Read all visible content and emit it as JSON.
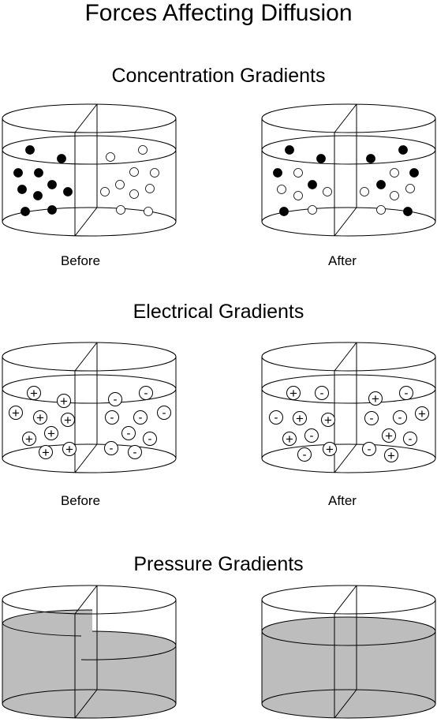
{
  "title": "Forces Affecting Diffusion",
  "sections": {
    "concentration": {
      "heading": "Concentration Gradients",
      "before_label": "Before",
      "after_label": "After"
    },
    "electrical": {
      "heading": "Electrical Gradients",
      "before_label": "Before",
      "after_label": "After",
      "positive_symbol": "+",
      "negative_symbol": "-"
    },
    "pressure": {
      "heading": "Pressure Gradients"
    }
  },
  "colors": {
    "line": "#000000",
    "liquid_fill": "#bdbdbd",
    "solute_dark": "#000000",
    "solute_light": "#ffffff"
  },
  "icons": {
    "beaker": "cylinder-beaker-icon",
    "membrane": "partition-membrane-icon",
    "solute_particle": "particle-icon",
    "ion": "ion-icon"
  }
}
